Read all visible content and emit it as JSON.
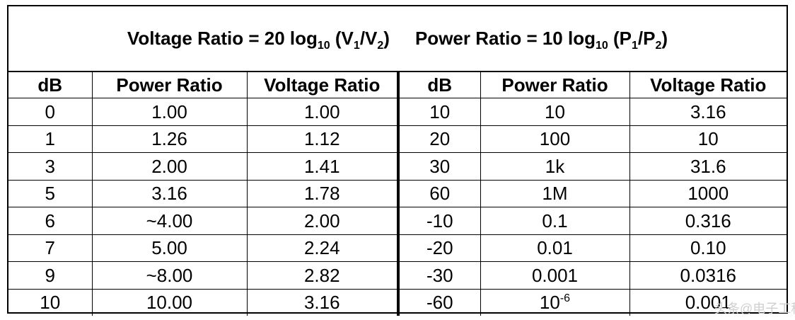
{
  "title": {
    "voltage": {
      "prefix": "Voltage Ratio = 20 log",
      "sub": "10",
      "paren_open": " (V",
      "v1_sub": "1",
      "slash": "/V",
      "v2_sub": "2",
      "paren_close": ")"
    },
    "power": {
      "prefix": "Power Ratio = 10 log",
      "sub": "10",
      "paren_open": " (P",
      "p1_sub": "1",
      "slash": "/P",
      "p2_sub": "2",
      "paren_close": ")"
    }
  },
  "headers": [
    "dB",
    "Power Ratio",
    "Voltage Ratio",
    "dB",
    "Power Ratio",
    "Voltage Ratio"
  ],
  "rows": [
    [
      "0",
      "1.00",
      "1.00",
      "10",
      "10",
      "3.16"
    ],
    [
      "1",
      "1.26",
      "1.12",
      "20",
      "100",
      "10"
    ],
    [
      "3",
      "2.00",
      "1.41",
      "30",
      "1k",
      "31.6"
    ],
    [
      "5",
      "3.16",
      "1.78",
      "60",
      "1M",
      "1000"
    ],
    [
      "6",
      "~4.00",
      "2.00",
      "-10",
      "0.1",
      "0.316"
    ],
    [
      "7",
      "5.00",
      "2.24",
      "-20",
      "0.01",
      "0.10"
    ],
    [
      "9",
      "~8.00",
      "2.82",
      "-30",
      "0.001",
      "0.0316"
    ],
    [
      "10",
      "10.00",
      "3.16",
      "-60",
      "",
      "0.001"
    ]
  ],
  "special": {
    "micro_base": "10",
    "micro_exp": "-6"
  },
  "watermark": "头条@电子工程"
}
